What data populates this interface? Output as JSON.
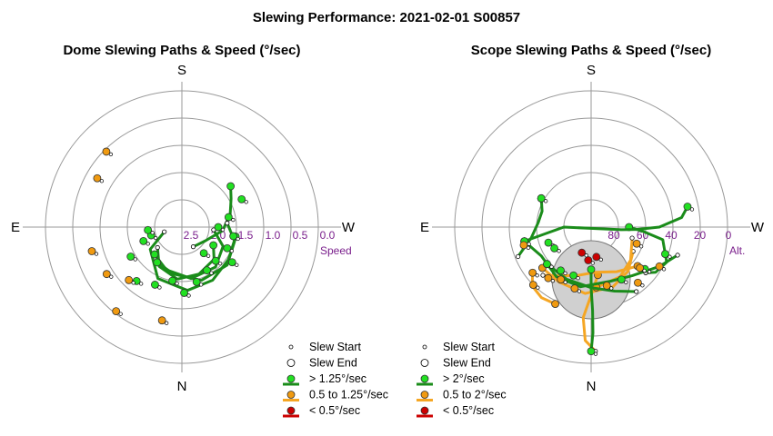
{
  "title": "Slewing Performance: 2021-02-01 S00857",
  "colors": {
    "fast": "#1a8c1a",
    "fast_marker": "#22e022",
    "medium": "#f5a623",
    "medium_marker": "#f09a10",
    "slow": "#cc0000",
    "ring_label": "#7a1f8c",
    "grid": "#999999",
    "zenith_fill": "#d0d0d0"
  },
  "chart_data": [
    {
      "type": "scatter",
      "projection": "polar",
      "title": "Dome Slewing Paths & Speed (°/sec)",
      "compass": {
        "top": "S",
        "bottom": "N",
        "left": "E",
        "right": "W"
      },
      "radial_axis_label": "Speed",
      "radial_ticks": [
        "2.5",
        "2.0",
        "1.5",
        "1.0",
        "0.5",
        "0.0"
      ],
      "legend": {
        "start": "Slew Start",
        "end": "Slew End",
        "fast": "> 1.25°/sec",
        "medium": "0.5 to 1.25°/sec",
        "slow": "< 0.5°/sec"
      },
      "paths": [
        {
          "speed": "fast",
          "points": [
            [
              150,
              2.5
            ],
            [
              120,
              2.4
            ],
            [
              95,
              2.1
            ],
            [
              75,
              1.9
            ],
            [
              60,
              1.75
            ],
            [
              50,
              1.6
            ]
          ]
        },
        {
          "speed": "fast",
          "points": [
            [
              230,
              2.3
            ],
            [
              210,
              2.0
            ],
            [
              185,
              1.85
            ],
            [
              160,
              1.9
            ],
            [
              135,
              2.0
            ],
            [
              120,
              2.2
            ]
          ]
        },
        {
          "speed": "fast",
          "points": [
            [
              255,
              2.6
            ],
            [
              235,
              2.15
            ],
            [
              205,
              1.75
            ],
            [
              175,
              1.6
            ],
            [
              150,
              1.65
            ],
            [
              125,
              1.75
            ],
            [
              100,
              1.8
            ]
          ]
        },
        {
          "speed": "fast",
          "points": [
            [
              95,
              2.3
            ],
            [
              115,
              2.0
            ],
            [
              140,
              1.85
            ],
            [
              170,
              1.85
            ],
            [
              200,
              2.0
            ],
            [
              225,
              2.15
            ]
          ]
        },
        {
          "speed": "fast",
          "points": [
            [
              85,
              2.0
            ],
            [
              105,
              1.8
            ],
            [
              130,
              1.7
            ],
            [
              160,
              1.75
            ],
            [
              190,
              1.95
            ],
            [
              215,
              2.05
            ]
          ]
        }
      ],
      "points": [
        {
          "speed": "fast",
          "angle": 65,
          "r": 1.55
        },
        {
          "speed": "fast",
          "angle": 78,
          "r": 1.95
        },
        {
          "speed": "fast",
          "angle": 100,
          "r": 1.85
        },
        {
          "speed": "fast",
          "angle": 115,
          "r": 1.9
        },
        {
          "speed": "fast",
          "angle": 125,
          "r": 1.65
        },
        {
          "speed": "fast",
          "angle": 135,
          "r": 1.95
        },
        {
          "speed": "fast",
          "angle": 150,
          "r": 1.9
        },
        {
          "speed": "fast",
          "angle": 165,
          "r": 1.75
        },
        {
          "speed": "fast",
          "angle": 178,
          "r": 1.55
        },
        {
          "speed": "fast",
          "angle": 190,
          "r": 1.8
        },
        {
          "speed": "fast",
          "angle": 205,
          "r": 1.6
        },
        {
          "speed": "fast",
          "angle": 220,
          "r": 1.45
        },
        {
          "speed": "fast",
          "angle": 240,
          "r": 1.7
        },
        {
          "speed": "fast",
          "angle": 250,
          "r": 2.1
        },
        {
          "speed": "fast",
          "angle": 255,
          "r": 2.3
        },
        {
          "speed": "fast",
          "angle": 265,
          "r": 2.25
        },
        {
          "speed": "fast",
          "angle": 140,
          "r": 2.25
        },
        {
          "speed": "fast",
          "angle": 90,
          "r": 2.2
        },
        {
          "speed": "medium",
          "angle": 192,
          "r": 0.9
        },
        {
          "speed": "medium",
          "angle": 218,
          "r": 0.65
        },
        {
          "speed": "medium",
          "angle": 225,
          "r": 1.35
        },
        {
          "speed": "medium",
          "angle": 238,
          "r": 1.05
        },
        {
          "speed": "medium",
          "angle": 255,
          "r": 0.95
        },
        {
          "speed": "medium",
          "angle": 315,
          "r": 0.65
        },
        {
          "speed": "medium",
          "angle": 300,
          "r": 0.85
        }
      ]
    },
    {
      "type": "scatter",
      "projection": "polar",
      "title": "Scope Slewing Paths & Speed (°/sec)",
      "compass": {
        "top": "S",
        "bottom": "N",
        "left": "E",
        "right": "W"
      },
      "radial_axis_label": "Alt.",
      "radial_ticks": [
        "80",
        "60",
        "40",
        "20",
        "0"
      ],
      "zenith_exclusion_alt": 70,
      "legend": {
        "start": "Slew Start",
        "end": "Slew End",
        "fast": "> 2°/sec",
        "medium": "0.5 to 2°/sec",
        "slow": "< 0.5°/sec"
      },
      "paths": [
        {
          "speed": "medium",
          "points": [
            [
              178,
              8
            ],
            [
              183,
              15
            ],
            [
              185,
              30
            ],
            [
              180,
              45
            ],
            [
              172,
              58
            ]
          ]
        },
        {
          "speed": "medium",
          "points": [
            [
              225,
              45
            ],
            [
              212,
              52
            ],
            [
              195,
              57
            ],
            [
              175,
              60
            ],
            [
              150,
              56
            ],
            [
              130,
              50
            ]
          ]
        },
        {
          "speed": "medium",
          "points": [
            [
              232,
              41
            ],
            [
              225,
              35
            ],
            [
              215,
              33
            ],
            [
              205,
              34
            ]
          ]
        },
        {
          "speed": "medium",
          "points": [
            [
              120,
              58
            ],
            [
              140,
              52
            ],
            [
              160,
              48
            ],
            [
              185,
              46
            ],
            [
              210,
              48
            ],
            [
              230,
              48
            ]
          ]
        },
        {
          "speed": "medium",
          "points": [
            [
              105,
              62
            ],
            [
              130,
              56
            ],
            [
              150,
              52
            ],
            [
              175,
              50
            ]
          ]
        },
        {
          "speed": "fast",
          "points": [
            [
              180,
              8
            ],
            [
              179,
              20
            ],
            [
              179,
              35
            ],
            [
              180,
              50
            ],
            [
              180,
              62
            ]
          ]
        },
        {
          "speed": "fast",
          "points": [
            [
              130,
              43
            ],
            [
              125,
              38
            ],
            [
              115,
              35
            ],
            [
              100,
              42
            ],
            [
              95,
              55
            ],
            [
              90,
              65
            ]
          ]
        },
        {
          "speed": "fast",
          "points": [
            [
              108,
              30
            ],
            [
              120,
              38
            ],
            [
              140,
              48
            ],
            [
              160,
              52
            ],
            [
              190,
              50
            ],
            [
              215,
              50
            ],
            [
              240,
              52
            ],
            [
              258,
              45
            ]
          ]
        },
        {
          "speed": "fast",
          "points": [
            [
              78,
              25
            ],
            [
              84,
              30
            ],
            [
              90,
              45
            ],
            [
              93,
              60
            ],
            [
              95,
              70
            ],
            [
              270,
              72
            ],
            [
              262,
              60
            ],
            [
              258,
              45
            ]
          ]
        },
        {
          "speed": "fast",
          "points": [
            [
              248,
              38
            ],
            [
              260,
              50
            ],
            [
              275,
              55
            ],
            [
              288,
              56
            ],
            [
              300,
              52
            ]
          ]
        },
        {
          "speed": "fast",
          "points": [
            [
              145,
              38
            ],
            [
              160,
              45
            ],
            [
              180,
              50
            ],
            [
              205,
              52
            ],
            [
              230,
              52
            ]
          ]
        }
      ],
      "points": [
        {
          "speed": "fast",
          "angle": 180,
          "r": 8
        },
        {
          "speed": "fast",
          "angle": 78,
          "r": 25
        },
        {
          "speed": "fast",
          "angle": 258,
          "r": 45
        },
        {
          "speed": "fast",
          "angle": 300,
          "r": 52
        },
        {
          "speed": "fast",
          "angle": 230,
          "r": 52
        },
        {
          "speed": "fast",
          "angle": 215,
          "r": 55
        },
        {
          "speed": "fast",
          "angle": 200,
          "r": 56
        },
        {
          "speed": "fast",
          "angle": 250,
          "r": 60
        },
        {
          "speed": "fast",
          "angle": 110,
          "r": 38
        },
        {
          "speed": "fast",
          "angle": 128,
          "r": 45
        },
        {
          "speed": "fast",
          "angle": 150,
          "r": 50
        },
        {
          "speed": "fast",
          "angle": 240,
          "r": 62
        },
        {
          "speed": "medium",
          "angle": 120,
          "r": 38
        },
        {
          "speed": "medium",
          "angle": 130,
          "r": 48
        },
        {
          "speed": "medium",
          "angle": 140,
          "r": 42
        },
        {
          "speed": "medium",
          "angle": 165,
          "r": 50
        },
        {
          "speed": "medium",
          "angle": 195,
          "r": 48
        },
        {
          "speed": "medium",
          "angle": 210,
          "r": 50
        },
        {
          "speed": "medium",
          "angle": 220,
          "r": 46
        },
        {
          "speed": "medium",
          "angle": 232,
          "r": 41
        },
        {
          "speed": "medium",
          "angle": 225,
          "r": 36
        },
        {
          "speed": "medium",
          "angle": 110,
          "r": 58
        },
        {
          "speed": "medium",
          "angle": 255,
          "r": 44
        },
        {
          "speed": "slow",
          "angle": 185,
          "r": 68
        },
        {
          "speed": "slow",
          "angle": 170,
          "r": 70
        },
        {
          "speed": "slow",
          "angle": 200,
          "r": 72
        }
      ]
    }
  ]
}
